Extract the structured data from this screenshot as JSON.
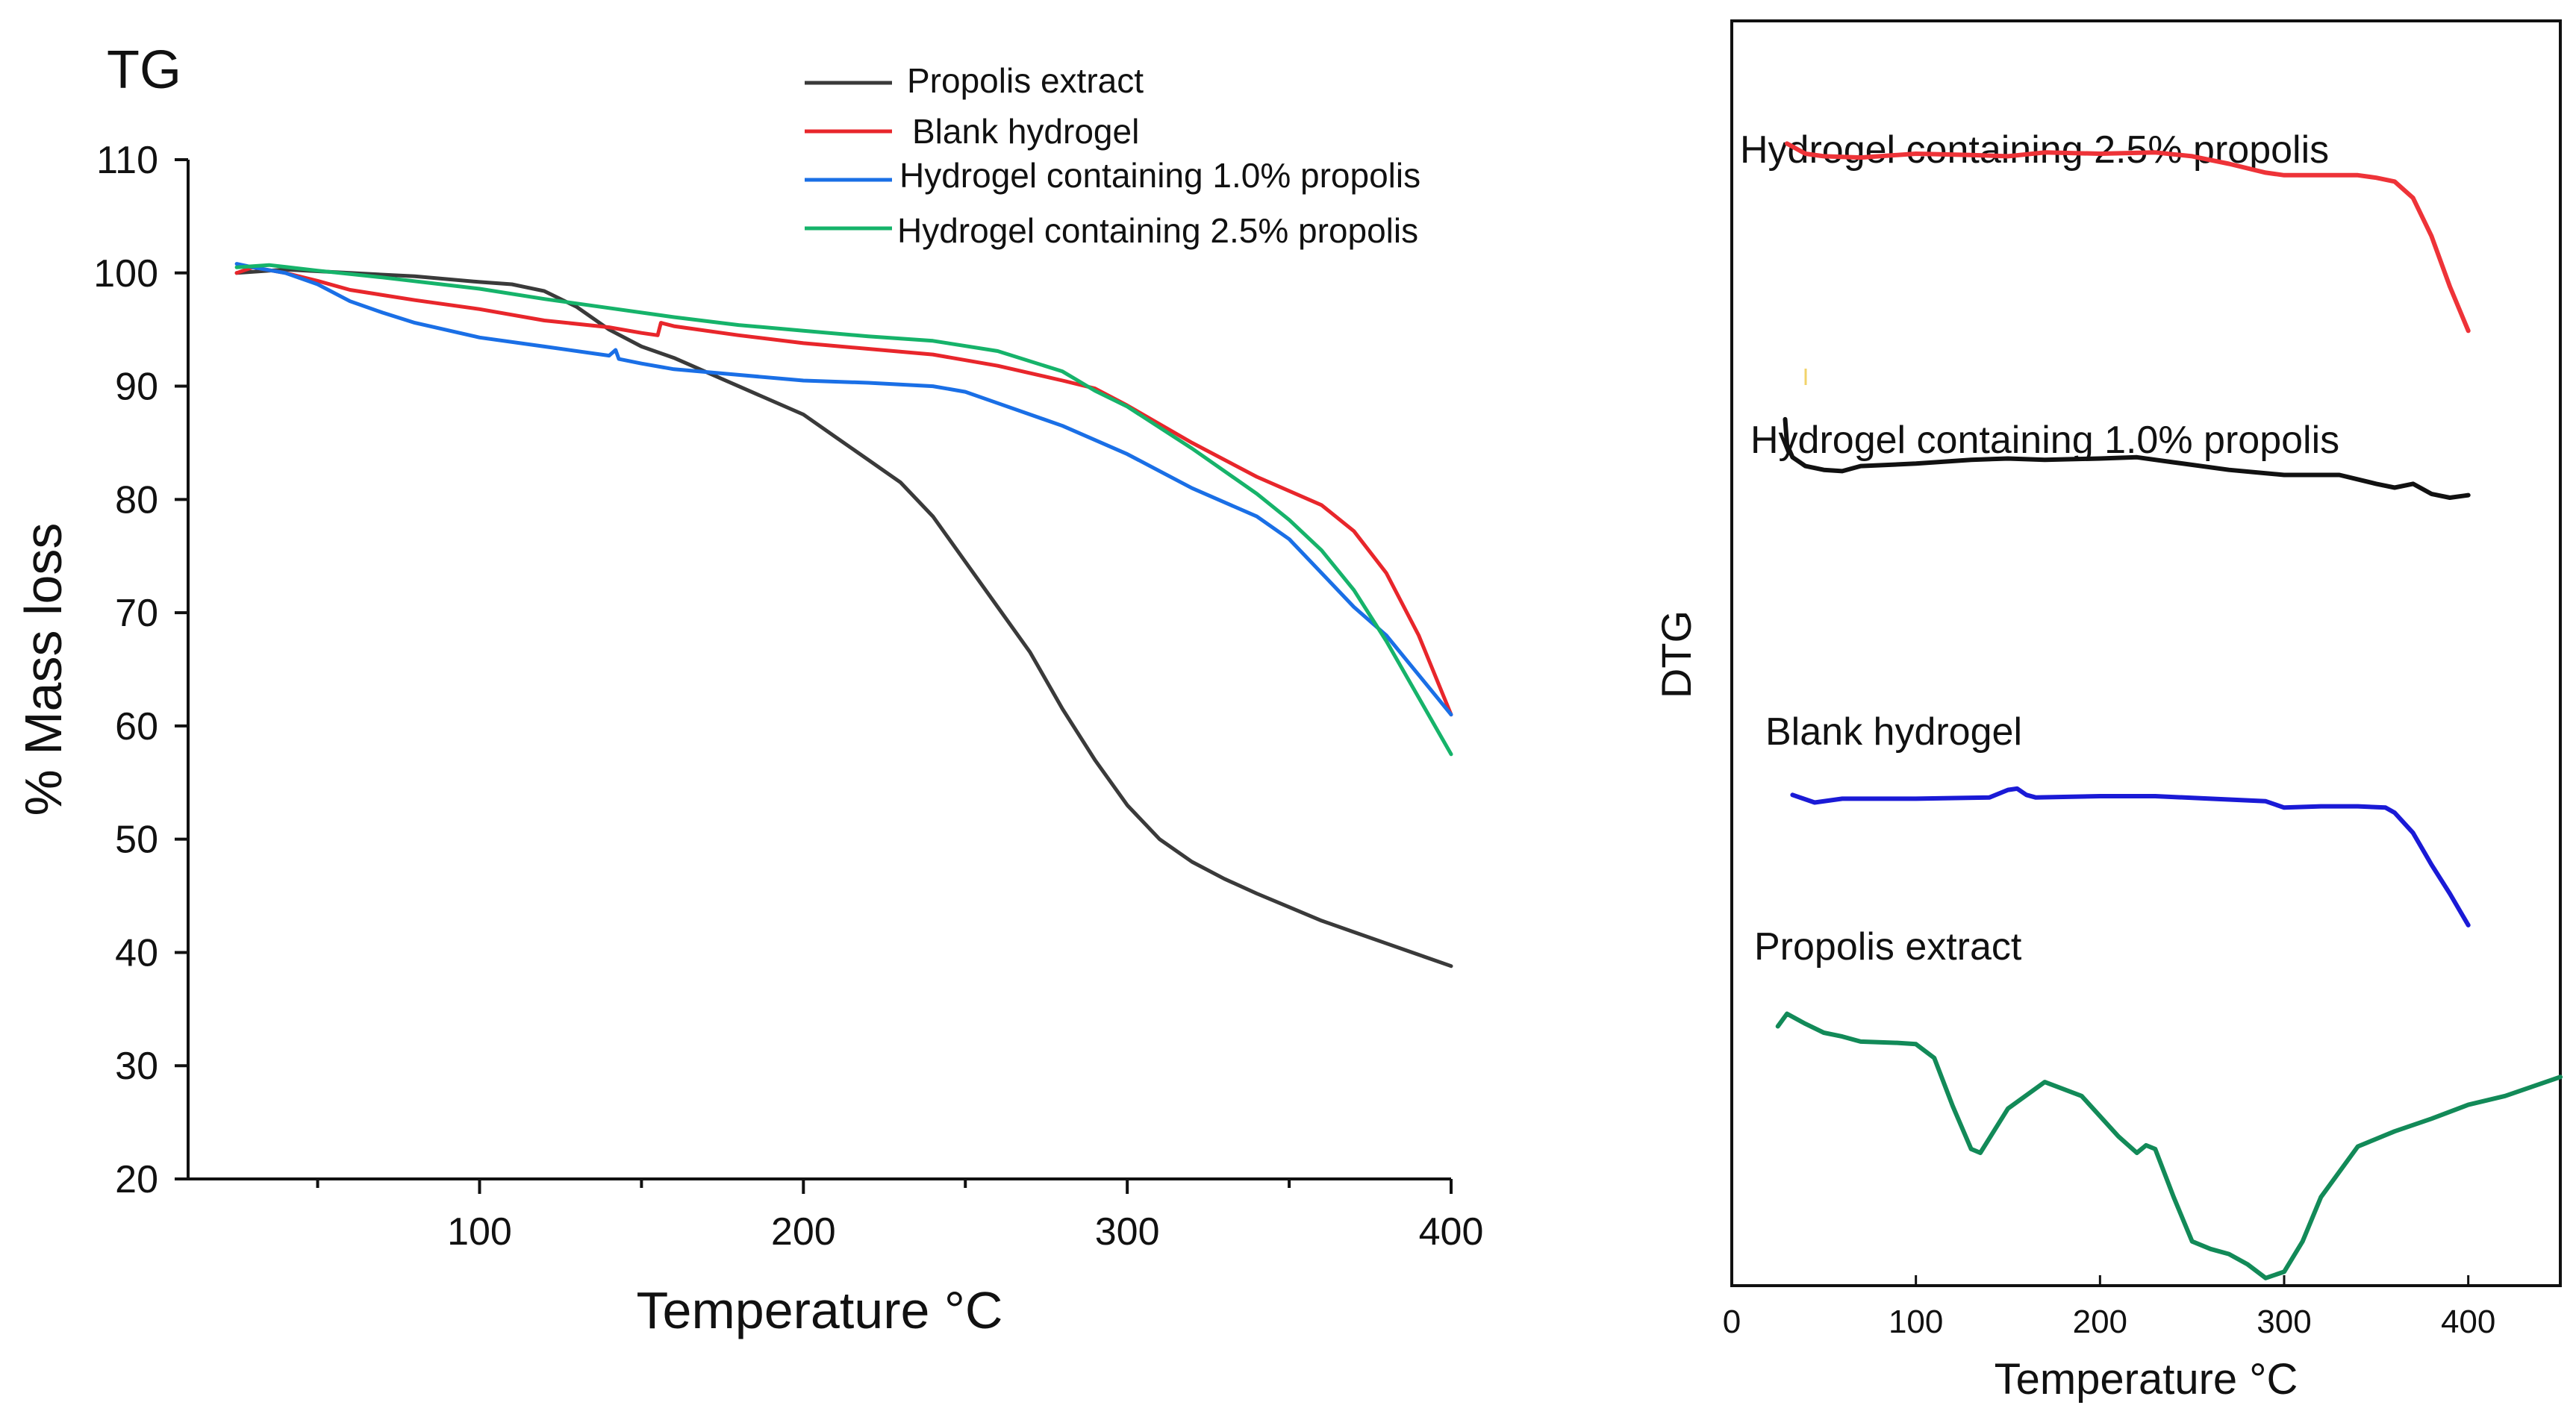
{
  "chart_data": [
    {
      "type": "line",
      "title": "TG",
      "xlabel": "Temperature °C",
      "ylabel": "% Mass loss",
      "xlim": [
        10,
        400
      ],
      "ylim": [
        20,
        110
      ],
      "xticks": [
        100,
        200,
        300,
        400
      ],
      "yticks": [
        20,
        30,
        40,
        50,
        60,
        70,
        80,
        90,
        100,
        110
      ],
      "grid": false,
      "legend_position": "top-right",
      "series": [
        {
          "name": "Propolis extract",
          "color": "#3a3a3a",
          "x": [
            25,
            40,
            60,
            80,
            100,
            110,
            120,
            130,
            140,
            150,
            160,
            180,
            200,
            210,
            220,
            230,
            240,
            250,
            260,
            270,
            280,
            290,
            300,
            310,
            320,
            330,
            340,
            350,
            360,
            370,
            380,
            390,
            400
          ],
          "y": [
            100,
            100.3,
            100,
            99.7,
            99.2,
            99,
            98.4,
            97,
            95,
            93.5,
            92.5,
            90,
            87.5,
            85.5,
            83.5,
            81.5,
            78.5,
            74.5,
            70.5,
            66.5,
            61.5,
            57,
            53,
            50,
            48,
            46.5,
            45.2,
            44,
            42.8,
            41.8,
            40.8,
            39.8,
            38.8
          ]
        },
        {
          "name": "Blank hydrogel",
          "color": "#e8262b",
          "x": [
            25,
            30,
            40,
            50,
            60,
            80,
            100,
            120,
            140,
            150,
            155,
            156,
            160,
            180,
            200,
            220,
            240,
            260,
            280,
            290,
            300,
            320,
            340,
            360,
            370,
            380,
            390,
            400
          ],
          "y": [
            100,
            100.5,
            100,
            99.3,
            98.5,
            97.6,
            96.8,
            95.8,
            95.2,
            94.7,
            94.5,
            95.6,
            95.3,
            94.5,
            93.8,
            93.3,
            92.8,
            91.8,
            90.5,
            89.8,
            88.3,
            85,
            82,
            79.5,
            77.2,
            73.5,
            68,
            61
          ]
        },
        {
          "name": "Hydrogel containing 1.0% propolis",
          "color": "#1a6fe6",
          "x": [
            25,
            30,
            40,
            50,
            60,
            70,
            80,
            100,
            120,
            140,
            142,
            143,
            150,
            160,
            180,
            200,
            220,
            240,
            250,
            260,
            280,
            300,
            320,
            340,
            350,
            360,
            370,
            380,
            390,
            400
          ],
          "y": [
            100.8,
            100.5,
            100,
            99,
            97.5,
            96.5,
            95.6,
            94.3,
            93.5,
            92.7,
            93.2,
            92.4,
            92,
            91.5,
            91,
            90.5,
            90.3,
            90,
            89.5,
            88.5,
            86.5,
            84,
            81,
            78.5,
            76.5,
            73.5,
            70.5,
            68,
            64.5,
            61
          ]
        },
        {
          "name": "Hydrogel containing 2.5% propolis",
          "color": "#16b36a",
          "x": [
            25,
            35,
            50,
            70,
            100,
            120,
            140,
            160,
            180,
            200,
            220,
            240,
            260,
            280,
            290,
            300,
            320,
            340,
            350,
            360,
            370,
            380,
            390,
            400
          ],
          "y": [
            100.5,
            100.7,
            100.2,
            99.6,
            98.6,
            97.7,
            96.9,
            96.1,
            95.4,
            94.9,
            94.4,
            94,
            93.1,
            91.3,
            89.6,
            88.2,
            84.5,
            80.5,
            78.2,
            75.5,
            72,
            67.5,
            62.5,
            57.5
          ]
        }
      ]
    },
    {
      "type": "line",
      "title": "",
      "xlabel": "Temperature °C",
      "ylabel": "DTG",
      "xlim": [
        0,
        450
      ],
      "ylim": [
        0,
        100
      ],
      "xticks": [
        0,
        100,
        200,
        300,
        400
      ],
      "yticks": [],
      "grid": false,
      "series": [
        {
          "name": "Hydrogel containing 2.5% propolis",
          "color": "#ee3338",
          "x": [
            30,
            40,
            50,
            70,
            100,
            130,
            150,
            170,
            200,
            230,
            250,
            270,
            290,
            300,
            320,
            340,
            350,
            360,
            370,
            380,
            390,
            400
          ],
          "y": [
            90.3,
            89.5,
            89.3,
            89.2,
            89.5,
            89.4,
            89.3,
            89.6,
            89.5,
            89.6,
            89.3,
            88.7,
            88,
            87.8,
            87.8,
            87.8,
            87.6,
            87.3,
            86,
            83,
            79,
            75.5
          ]
        },
        {
          "name": "Hydrogel containing 1.0% propolis",
          "color": "#111111",
          "x": [
            29,
            30,
            33,
            40,
            50,
            60,
            70,
            100,
            130,
            150,
            170,
            200,
            220,
            240,
            270,
            300,
            330,
            350,
            360,
            370,
            380,
            390,
            400
          ],
          "y": [
            68.5,
            66.5,
            65.5,
            64.8,
            64.5,
            64.4,
            64.8,
            65,
            65.3,
            65.4,
            65.3,
            65.4,
            65.5,
            65.1,
            64.5,
            64.1,
            64.1,
            63.4,
            63.1,
            63.4,
            62.6,
            62.3,
            62.5
          ]
        },
        {
          "name": "Blank hydrogel",
          "color": "#1a1ad6",
          "x": [
            33,
            45,
            60,
            100,
            140,
            150,
            155,
            160,
            165,
            200,
            230,
            260,
            290,
            300,
            320,
            340,
            355,
            360,
            370,
            380,
            390,
            400
          ],
          "y": [
            38.8,
            38.2,
            38.5,
            38.5,
            38.6,
            39.2,
            39.3,
            38.8,
            38.6,
            38.7,
            38.7,
            38.5,
            38.3,
            37.8,
            37.9,
            37.9,
            37.8,
            37.4,
            35.8,
            33.3,
            31,
            28.5
          ]
        },
        {
          "name": "Propolis extract",
          "color": "#128a58",
          "x": [
            25,
            30,
            40,
            50,
            60,
            70,
            90,
            100,
            110,
            120,
            130,
            135,
            150,
            170,
            190,
            210,
            220,
            225,
            230,
            240,
            250,
            260,
            270,
            280,
            290,
            300,
            310,
            320,
            340,
            360,
            380,
            400,
            420,
            450
          ],
          "y": [
            20.5,
            21.5,
            20.7,
            20,
            19.7,
            19.3,
            19.2,
            19.1,
            18,
            14.2,
            10.8,
            10.5,
            14,
            16.1,
            15,
            11.8,
            10.5,
            11.1,
            10.8,
            7,
            3.5,
            2.9,
            2.5,
            1.7,
            0.6,
            1.1,
            3.5,
            7,
            11,
            12.2,
            13.2,
            14.3,
            15,
            16.5
          ]
        }
      ],
      "annotations": [
        "Hydrogel containing 2.5% propolis",
        "Hydrogel containing 1.0% propolis",
        "Blank hydrogel",
        "Propolis extract"
      ]
    }
  ]
}
